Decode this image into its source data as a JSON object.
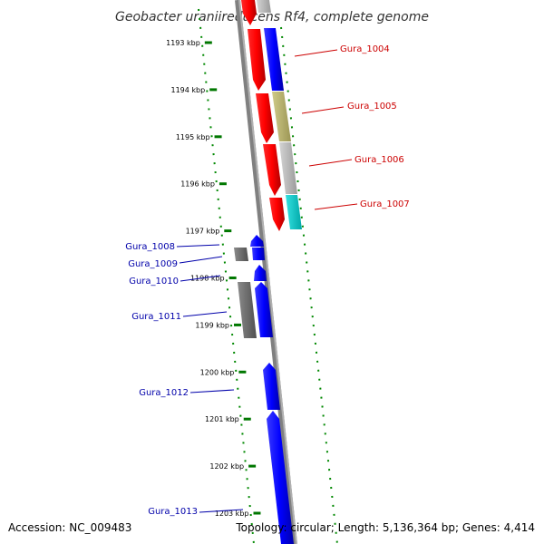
{
  "title": "Geobacter uraniireducens Rf4, complete genome",
  "footer": {
    "accession": "Accession: NC_009483",
    "summary": "Topology: circular; Length: 5,136,364 bp; Genes: 4,414"
  },
  "ruler": {
    "ticks": [
      "1193 kbp",
      "1194 kbp",
      "1195 kbp",
      "1196 kbp",
      "1197 kbp",
      "1198 kbp",
      "1199 kbp",
      "1200 kbp",
      "1201 kbp",
      "1202 kbp",
      "1203 kbp"
    ]
  },
  "genes": {
    "right": [
      {
        "label": "Gura_1004",
        "color": "#ff0000"
      },
      {
        "label": "Gura_1005",
        "color": "#ff0000"
      },
      {
        "label": "Gura_1006",
        "color": "#ff0000"
      },
      {
        "label": "Gura_1007",
        "color": "#ff0000"
      }
    ],
    "left": [
      {
        "label": "Gura_1008",
        "color": "#0000aa"
      },
      {
        "label": "Gura_1009",
        "color": "#0000aa"
      },
      {
        "label": "Gura_1010",
        "color": "#0000aa"
      },
      {
        "label": "Gura_1011",
        "color": "#0000aa"
      },
      {
        "label": "Gura_1012",
        "color": "#0000aa"
      },
      {
        "label": "Gura_1013",
        "color": "#0000aa"
      }
    ]
  },
  "colors": {
    "forward_gene": "#ff0000",
    "reverse_gene": "#0000ff",
    "olive_feature": "#b5b06a",
    "grey_feature": "#b8b8b8",
    "cyan_feature": "#00cccc",
    "dark_feature": "#666666",
    "backbone": "#808080",
    "tick": "#007700"
  }
}
